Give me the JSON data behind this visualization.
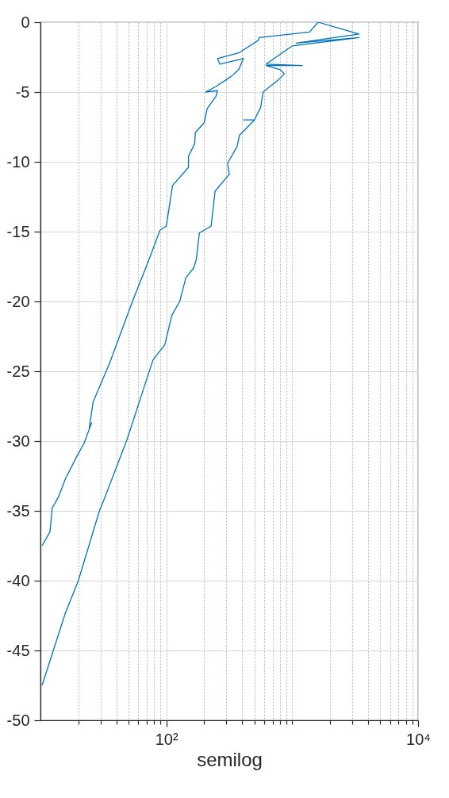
{
  "chart_data": {
    "type": "line",
    "xlabel": "semilog",
    "log": "x",
    "grid": true,
    "marker": "none",
    "line_style": "solid",
    "xlim": [
      10,
      10000
    ],
    "ylim": [
      -50,
      0
    ],
    "xticks": [
      {
        "value": 20,
        "label": null
      },
      {
        "value": 30,
        "label": null
      },
      {
        "value": 40,
        "label": null
      },
      {
        "value": 50,
        "label": null
      },
      {
        "value": 60,
        "label": null
      },
      {
        "value": 70,
        "label": null
      },
      {
        "value": 80,
        "label": null
      },
      {
        "value": 90,
        "label": null
      },
      {
        "value": 100,
        "label": "10²"
      },
      {
        "value": 200,
        "label": null
      },
      {
        "value": 300,
        "label": null
      },
      {
        "value": 400,
        "label": null
      },
      {
        "value": 500,
        "label": null
      },
      {
        "value": 600,
        "label": null
      },
      {
        "value": 700,
        "label": null
      },
      {
        "value": 800,
        "label": null
      },
      {
        "value": 900,
        "label": null
      },
      {
        "value": 1000,
        "label": null
      },
      {
        "value": 2000,
        "label": null
      },
      {
        "value": 3000,
        "label": null
      },
      {
        "value": 4000,
        "label": null
      },
      {
        "value": 5000,
        "label": null
      },
      {
        "value": 6000,
        "label": null
      },
      {
        "value": 7000,
        "label": null
      },
      {
        "value": 8000,
        "label": null
      },
      {
        "value": 9000,
        "label": null
      },
      {
        "value": 10000,
        "label": "10⁴"
      }
    ],
    "yticks": [
      -50,
      -45,
      -40,
      -35,
      -30,
      -25,
      -20,
      -15,
      -10,
      -5,
      0
    ],
    "series": [
      {
        "color": "#0072bd",
        "x": [
          10.3,
          15.8,
          20,
          29.4,
          32.6,
          48.7,
          78.3,
          97.2,
          110.6,
          127.7,
          143,
          165,
          173,
          183,
          227,
          244,
          316,
          307,
          365,
          381,
          501,
          410,
          501,
          562,
          587,
          783,
          866,
          805,
          622,
          1205,
          622,
          772,
          1000,
          3400,
          1075,
          3400,
          1607,
          1373,
          546,
          538,
          376,
          255,
          266,
          330,
          410,
          376,
          326,
          248,
          205,
          255,
          248,
          211,
          200,
          170,
          168,
          150,
          150,
          112,
          100,
          89,
          72.9,
          53.8,
          35.5,
          26.2,
          24.4,
          25.5,
          22.1,
          19.7,
          15.8,
          13.9,
          12.4,
          11.9,
          10.3
        ],
        "values": [
          -47.5,
          -42.3,
          -40,
          -35,
          -34,
          -29.9,
          -24.2,
          -23.1,
          -21,
          -20,
          -18.3,
          -17.6,
          -17,
          -15.1,
          -14.6,
          -12.1,
          -10.9,
          -10.1,
          -8.9,
          -8.1,
          -7,
          -7,
          -7,
          -6.1,
          -5,
          -4.1,
          -3.7,
          -3.4,
          -3.1,
          -3.1,
          -3,
          -2.4,
          -1.7,
          -1.1,
          -1.5,
          -0.85,
          0,
          -0.7,
          -1.1,
          -1.3,
          -2.2,
          -2.6,
          -3,
          -2.8,
          -2.6,
          -3.4,
          -3.9,
          -4.6,
          -5,
          -4.9,
          -5.3,
          -6.2,
          -7.2,
          -7.9,
          -8.7,
          -9.6,
          -10.4,
          -11.7,
          -14.6,
          -14.9,
          -17,
          -20,
          -24.4,
          -27.2,
          -29.1,
          -28.7,
          -30.2,
          -31,
          -32.7,
          -34,
          -34.8,
          -36.5,
          -37.5
        ]
      }
    ]
  }
}
